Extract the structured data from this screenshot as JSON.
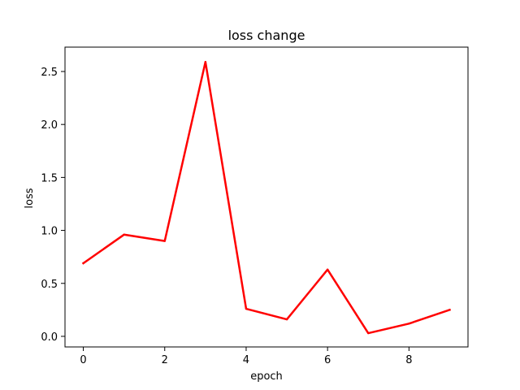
{
  "chart_data": {
    "type": "line",
    "title": "loss change",
    "xlabel": "epoch",
    "ylabel": "loss",
    "xlim": [
      -0.45,
      9.45
    ],
    "ylim": [
      -0.1,
      2.73
    ],
    "xticks": [
      0,
      2,
      4,
      6,
      8
    ],
    "yticks": [
      0.0,
      0.5,
      1.0,
      1.5,
      2.0,
      2.5
    ],
    "xtick_labels": [
      "0",
      "2",
      "4",
      "6",
      "8"
    ],
    "ytick_labels": [
      "0.0",
      "0.5",
      "1.0",
      "1.5",
      "2.0",
      "2.5"
    ],
    "grid": false,
    "legend": "none",
    "series": [
      {
        "color": "#ff0000",
        "x": [
          0,
          1,
          2,
          3,
          4,
          5,
          6,
          7,
          8,
          9
        ],
        "y": [
          0.69,
          0.96,
          0.9,
          2.59,
          0.26,
          0.16,
          0.63,
          0.03,
          0.12,
          0.25
        ]
      }
    ]
  }
}
